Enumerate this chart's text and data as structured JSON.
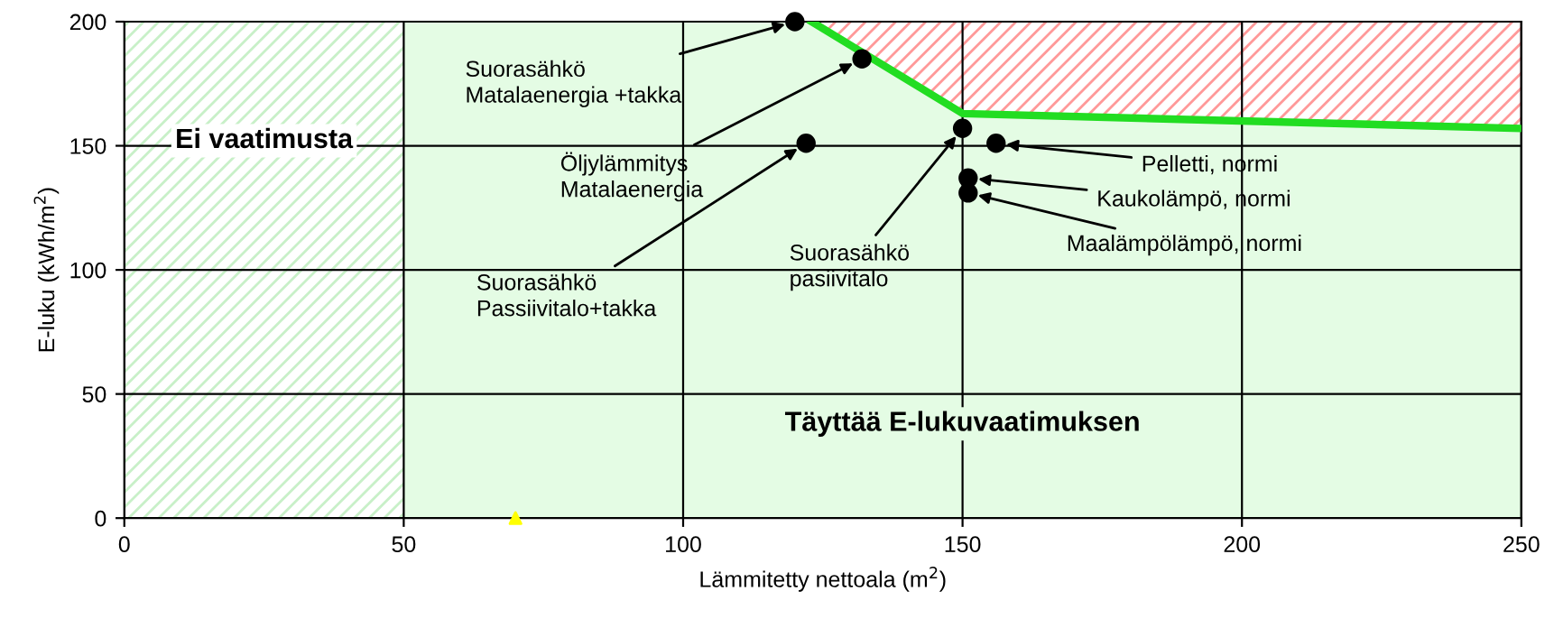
{
  "chart_data": {
    "type": "scatter",
    "xlabel": "Lämmitetty nettoala (m$^{2}$)",
    "ylabel": "E-luku (kWh/m$^{2}$)",
    "xlim": [
      0,
      250
    ],
    "xticks": [
      0,
      50,
      100,
      150,
      200,
      250
    ],
    "ylim": [
      0,
      200
    ],
    "yticks": [
      0,
      50,
      100,
      150,
      200
    ],
    "grid": true,
    "marker": "circle",
    "series": [
      {
        "type": "line",
        "color": "#22dd22",
        "x": [
          123,
          150,
          250
        ],
        "values": [
          200,
          163,
          157
        ],
        "marker": "none"
      },
      {
        "color": "#000000",
        "x": [
          120,
          132,
          122,
          150,
          156,
          151,
          151
        ],
        "values": [
          200,
          185,
          151,
          157,
          151,
          137,
          131
        ]
      },
      {
        "color": "#ffff00",
        "x": [
          70
        ],
        "values": [
          0
        ],
        "marker": "triangle"
      }
    ],
    "bands": [
      {
        "axis": "x",
        "from": 0,
        "to": 50,
        "label": "Ei vaatimusta",
        "color": "#c8f0c8"
      }
    ],
    "annotations": [
      {
        "text": "Suorasähkö\nMatalaenergia +takka",
        "x": 120,
        "y": 200
      },
      {
        "text": "Öljylämmitys\nMatalaenergia",
        "x": 132,
        "y": 185
      },
      {
        "text": "Suorasähkö\nPassiivitalo+takka",
        "x": 122,
        "y": 151
      },
      {
        "text": "Suorasähkö\npasiivitalo",
        "x": 150,
        "y": 157
      },
      {
        "text": "Pelletti, normi",
        "x": 156,
        "y": 151
      },
      {
        "text": "Kaukolämpö, normi",
        "x": 151,
        "y": 137
      },
      {
        "text": "Maalämpölämpö, normi",
        "x": 151,
        "y": 131
      },
      "Täyttää E-lukuvaatimuksen"
    ]
  }
}
